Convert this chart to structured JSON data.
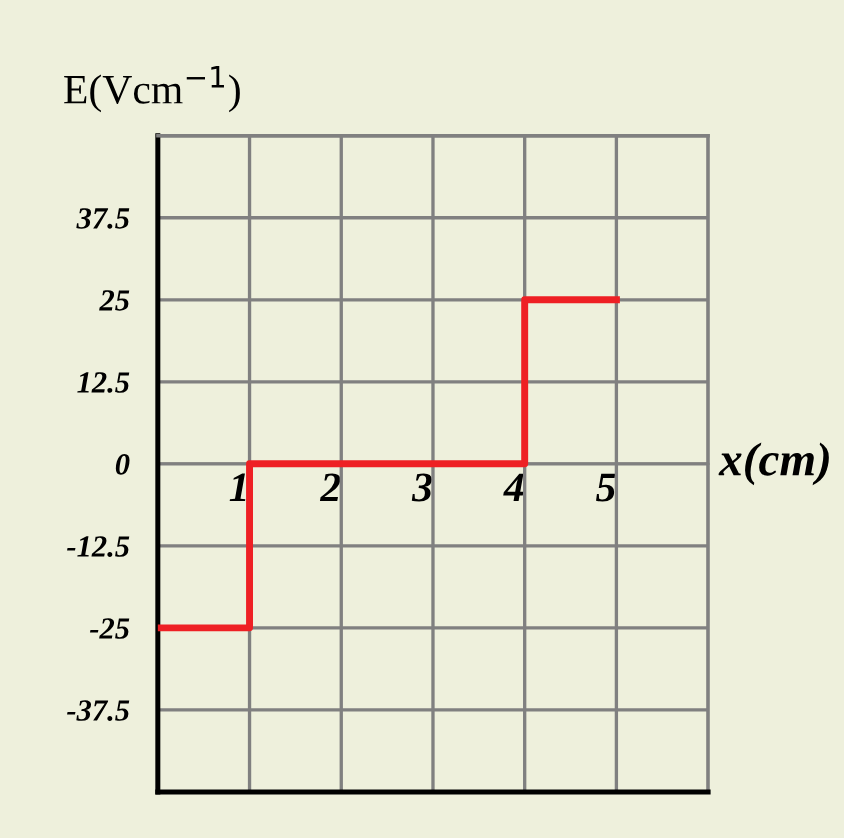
{
  "chart_data": {
    "type": "step",
    "xlabel": "x(cm)",
    "ylabel": "E(Vcm$^{−1}$)",
    "x": [
      0,
      1,
      4,
      5
    ],
    "series": [
      {
        "color": "#ee2024",
        "values": [
          -25,
          0,
          25,
          25
        ]
      }
    ],
    "xlim": [
      0,
      6
    ],
    "xticks": [
      {
        "value": 0,
        "label": null
      },
      1,
      2,
      3,
      4,
      5,
      {
        "value": 6,
        "label": null
      }
    ],
    "ylim": [
      -50,
      50
    ],
    "yticks": [
      {
        "value": -50,
        "label": null
      },
      -37.5,
      -25,
      -12.5,
      0,
      12.5,
      25,
      37.5,
      {
        "value": 50,
        "label": null
      }
    ],
    "grid": true
  }
}
